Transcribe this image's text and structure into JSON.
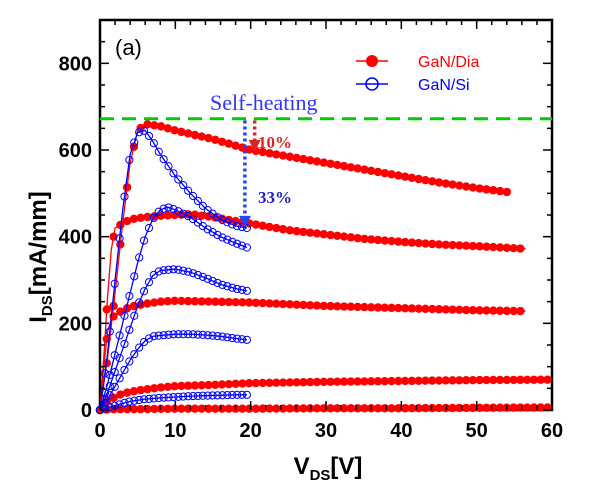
{
  "chart_data": {
    "type": "line",
    "panel_label": "(a)",
    "xlabel": {
      "main": "V",
      "sub": "DS",
      "suffix": "[V]"
    },
    "ylabel": {
      "main": "I",
      "sub": "DS",
      "suffix": "[mA/mm]"
    },
    "xlim": [
      0,
      60
    ],
    "ylim": [
      0,
      900
    ],
    "xticks": [
      0,
      10,
      20,
      30,
      40,
      50,
      60
    ],
    "yticks": [
      0,
      200,
      400,
      600,
      800
    ],
    "grid": false,
    "legend_position": "top-right",
    "series": [
      {
        "name": "GaN/Dia",
        "color": "#ff0000",
        "marker": "filled-circle",
        "curves": [
          {
            "x": [
              0,
              1,
              2,
              3,
              4,
              5,
              6,
              8,
              10,
              15,
              20,
              25,
              30,
              35,
              40,
              45,
              50,
              54.5
            ],
            "y": [
              0,
              120,
              270,
              430,
              570,
              645,
              660,
              655,
              645,
              625,
              600,
              585,
              570,
              555,
              540,
              525,
              512,
              502
            ]
          },
          {
            "x": [
              0,
              0.5,
              1,
              1.5,
              2,
              3,
              4,
              6,
              8,
              10,
              12,
              15,
              20,
              25,
              30,
              35,
              40,
              45,
              50,
              56.5
            ],
            "y": [
              0,
              120,
              260,
              370,
              420,
              430,
              440,
              445,
              448,
              450,
              452,
              445,
              430,
              415,
              405,
              395,
              388,
              382,
              378,
              372
            ]
          },
          {
            "x": [
              0,
              0.5,
              1,
              1.5,
              2,
              3,
              4,
              6,
              8,
              10,
              15,
              20,
              30,
              40,
              50,
              56.5
            ],
            "y": [
              0,
              100,
              180,
              210,
              220,
              230,
              238,
              245,
              250,
              252,
              250,
              248,
              240,
              235,
              230,
              228
            ]
          },
          {
            "x": [
              0,
              0.5,
              1,
              2,
              3,
              5,
              8,
              10,
              15,
              20,
              30,
              40,
              50,
              60
            ],
            "y": [
              0,
              10,
              20,
              30,
              38,
              45,
              52,
              55,
              58,
              62,
              65,
              67,
              69,
              70
            ]
          },
          {
            "x": [
              0,
              1,
              2,
              5,
              10,
              20,
              30,
              40,
              50,
              60
            ],
            "y": [
              0,
              1,
              2,
              2,
              3,
              3,
              4,
              4,
              5,
              6
            ]
          }
        ]
      },
      {
        "name": "GaN/Si",
        "color": "#0000ff",
        "marker": "open-circle",
        "curves": [
          {
            "x": [
              0,
              1,
              2,
              3,
              4,
              5,
              6,
              7,
              8,
              10,
              12,
              14,
              16,
              18,
              19.5
            ],
            "y": [
              0,
              130,
              300,
              460,
              590,
              640,
              645,
              620,
              590,
              540,
              500,
              465,
              440,
              425,
              420
            ]
          },
          {
            "x": [
              0,
              1,
              2,
              3,
              4,
              5,
              6,
              7,
              8,
              9,
              10,
              12,
              14,
              16,
              18,
              19.5
            ],
            "y": [
              0,
              60,
              130,
              200,
              270,
              340,
              400,
              440,
              462,
              468,
              462,
              445,
              420,
              400,
              385,
              375
            ]
          },
          {
            "x": [
              0,
              1,
              2,
              3,
              4,
              5,
              6,
              7,
              8,
              10,
              12,
              14,
              16,
              18,
              19.5
            ],
            "y": [
              0,
              40,
              90,
              140,
              190,
              240,
              280,
              310,
              322,
              325,
              318,
              305,
              290,
              280,
              275
            ]
          },
          {
            "x": [
              0,
              1,
              2,
              3,
              4,
              5,
              6,
              7,
              8,
              10,
              12,
              14,
              16,
              18,
              19.5
            ],
            "y": [
              0,
              25,
              55,
              85,
              115,
              140,
              160,
              170,
              172,
              175,
              175,
              173,
              170,
              165,
              162
            ]
          },
          {
            "x": [
              0,
              2,
              4,
              6,
              8,
              10,
              12,
              14,
              16,
              18,
              19.5
            ],
            "y": [
              0,
              10,
              20,
              25,
              28,
              30,
              32,
              33,
              34,
              35,
              35
            ]
          }
        ]
      }
    ],
    "reference_line": {
      "y": 672,
      "color": "#00cc00",
      "style": "dashed"
    },
    "annotations": [
      {
        "text": "Self-heating",
        "color": "#3333ff"
      },
      {
        "text": "10%",
        "color": "#dd2222"
      },
      {
        "text": "33%",
        "color": "#2222cc"
      }
    ],
    "arrows": [
      {
        "x": 20,
        "y_from": 668,
        "y_to": 600,
        "color": "#dd2222"
      },
      {
        "x": 19.5,
        "y_from": 668,
        "y_to": 425,
        "color": "#2244ff"
      }
    ]
  }
}
